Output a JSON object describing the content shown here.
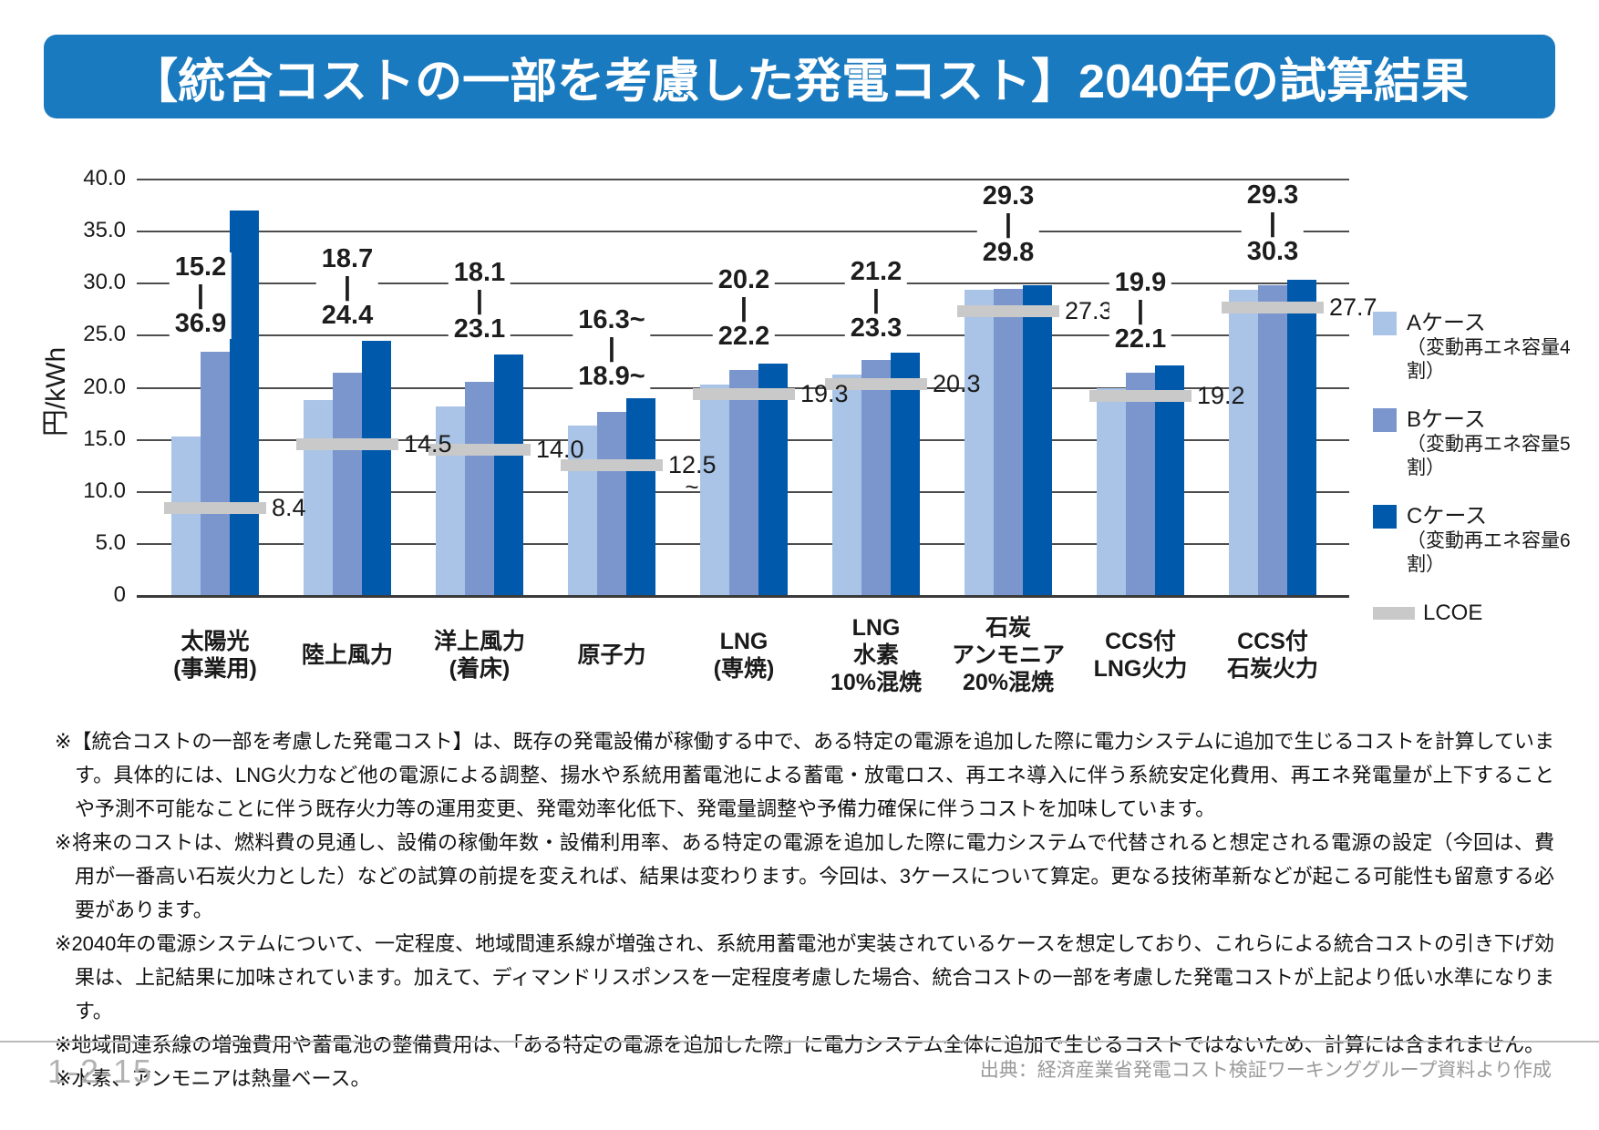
{
  "title": "【統合コストの一部を考慮した発電コスト】2040年の試算結果",
  "chart_data": {
    "type": "bar",
    "title": "",
    "ylabel": "円/kWh",
    "ylim": [
      0,
      40
    ],
    "ytick_step": 5,
    "ytick_labels": [
      "0",
      "5.0",
      "10.0",
      "15.0",
      "20.0",
      "25.0",
      "30.0",
      "35.0",
      "40.0"
    ],
    "grid": "horizontal",
    "legend_position": "right",
    "categories": [
      "太陽光\n(事業用)",
      "陸上風力",
      "洋上風力\n(着床)",
      "原子力",
      "LNG\n(専焼)",
      "LNG\n水素\n10%混焼",
      "石炭\nアンモニア\n20%混焼",
      "CCS付\nLNG火力",
      "CCS付\n石炭火力"
    ],
    "series": [
      {
        "name": "Aケース",
        "desc": "（変動再エネ容量4割）",
        "color": "#a9c4e6",
        "values": [
          15.2,
          18.7,
          18.1,
          16.3,
          20.2,
          21.2,
          29.3,
          19.9,
          29.3
        ]
      },
      {
        "name": "Bケース",
        "desc": "（変動再エネ容量5割）",
        "color": "#7b96cd",
        "values": [
          23.4,
          21.4,
          20.5,
          17.6,
          21.6,
          22.6,
          29.4,
          21.4,
          29.8
        ]
      },
      {
        "name": "Cケース",
        "desc": "（変動再エネ容量6割）",
        "color": "#0059ab",
        "values": [
          36.9,
          24.4,
          23.1,
          18.9,
          22.2,
          23.3,
          29.8,
          22.1,
          30.3
        ]
      }
    ],
    "lcoe": {
      "name": "LCOE",
      "color": "#c9c9c9",
      "values": [
        8.4,
        14.5,
        14.0,
        12.5,
        19.3,
        20.3,
        27.3,
        19.2,
        27.7
      ],
      "labels": [
        "8.4",
        "14.5",
        "14.0",
        "12.5",
        "19.3",
        "20.3",
        "27.3",
        "19.2",
        "27.7"
      ],
      "sub_labels": [
        "",
        "",
        "",
        "~",
        "",
        "",
        "",
        "",
        ""
      ]
    },
    "range_labels": [
      {
        "min": "15.2",
        "max": "36.9"
      },
      {
        "min": "18.7",
        "max": "24.4"
      },
      {
        "min": "18.1",
        "max": "23.1"
      },
      {
        "min": "16.3~",
        "max": "18.9~"
      },
      {
        "min": "20.2",
        "max": "22.2"
      },
      {
        "min": "21.2",
        "max": "23.3"
      },
      {
        "min": "29.3",
        "max": "29.8"
      },
      {
        "min": "19.9",
        "max": "22.1"
      },
      {
        "min": "29.3",
        "max": "30.3"
      }
    ]
  },
  "notes": [
    "※【統合コストの一部を考慮した発電コスト】は、既存の発電設備が稼働する中で、ある特定の電源を追加した際に電力システムに追加で生じるコストを計算しています。具体的には、LNG火力など他の電源による調整、揚水や系統用蓄電池による蓄電・放電ロス、再エネ導入に伴う系統安定化費用、再エネ発電量が上下することや予測不可能なことに伴う既存火力等の運用変更、発電効率化低下、発電量調整や予備力確保に伴うコストを加味しています。",
    "※将来のコストは、燃料費の見通し、設備の稼働年数・設備利用率、ある特定の電源を追加した際に電力システムで代替されると想定される電源の設定（今回は、費用が一番高い石炭火力とした）などの試算の前提を変えれば、結果は変わります。今回は、3ケースについて算定。更なる技術革新などが起こる可能性も留意する必要があります。",
    "※2040年の電源システムについて、一定程度、地域間連系線が増強され、系統用蓄電池が実装されているケースを想定しており、これらによる統合コストの引き下げ効果は、上記結果に加味されています。加えて、ディマンドリスポンスを一定程度考慮した場合、統合コストの一部を考慮した発電コストが上記より低い水準になります。",
    "※地域間連系線の増強費用や蓄電池の整備費用は、「ある特定の電源を追加した際」に電力システム全体に追加で生じるコストではないため、計算には含まれません。",
    "※水素、アンモニアは熱量ベース。"
  ],
  "footer": {
    "page": "1-2-15",
    "source": "出典：経済産業省発電コスト検証ワーキンググループ資料より作成"
  }
}
